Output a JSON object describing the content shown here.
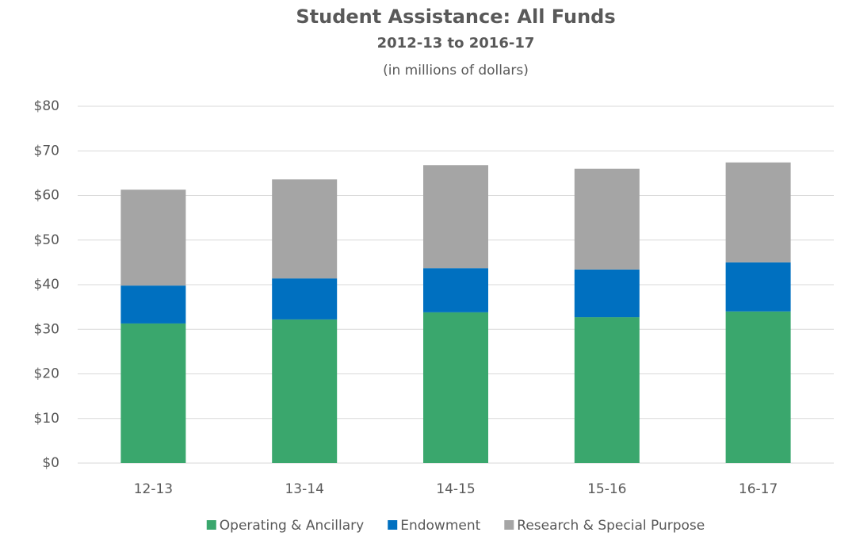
{
  "chart_data": {
    "type": "stacked_bar",
    "title": "Student Assistance: All Funds",
    "subtitle": "2012-13 to 2016-17",
    "units_note": "(in millions of dollars)",
    "categories": [
      "12-13",
      "13-14",
      "14-15",
      "15-16",
      "16-17"
    ],
    "series": [
      {
        "name": "Operating & Ancillary",
        "color": "#3aa76d",
        "values": [
          31.3,
          32.2,
          33.8,
          32.7,
          34.0
        ]
      },
      {
        "name": "Endowment",
        "color": "#0070c0",
        "values": [
          8.5,
          9.2,
          9.9,
          10.7,
          11.0
        ]
      },
      {
        "name": "Research & Special Purpose",
        "color": "#a5a5a5",
        "values": [
          21.5,
          22.2,
          23.1,
          22.6,
          22.4
        ]
      }
    ],
    "ylim": [
      0,
      80
    ],
    "yticks": [
      {
        "value": 0,
        "label": "$0"
      },
      {
        "value": 10,
        "label": "$10"
      },
      {
        "value": 20,
        "label": "$20"
      },
      {
        "value": 30,
        "label": "$30"
      },
      {
        "value": 40,
        "label": "$40"
      },
      {
        "value": 50,
        "label": "$50"
      },
      {
        "value": 60,
        "label": "$60"
      },
      {
        "value": 70,
        "label": "$70"
      },
      {
        "value": 80,
        "label": "$80"
      }
    ],
    "grid": true,
    "legend": "bottom"
  }
}
